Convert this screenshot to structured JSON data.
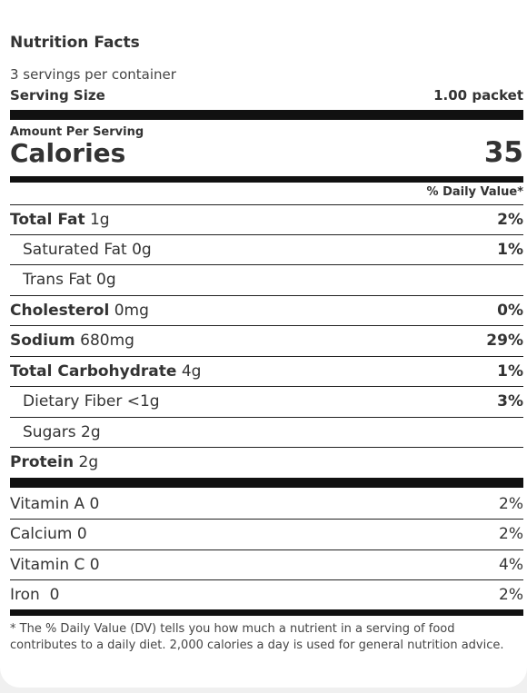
{
  "label": {
    "title": "Nutrition Facts",
    "servings_per_container": "3 servings per container",
    "serving_size_label": "Serving Size",
    "serving_size_value": "1.00 packet",
    "amount_per_serving": "Amount Per Serving",
    "calories_label": "Calories",
    "calories_value": "35",
    "daily_value_header": "% Daily Value*",
    "nutrients": [
      {
        "name": "Total Fat",
        "amount": "1g",
        "dv": "2%"
      },
      {
        "name": "Saturated Fat",
        "amount": "0g",
        "dv": "1%"
      },
      {
        "name": "Trans Fat",
        "amount": "0g",
        "dv": ""
      },
      {
        "name": "Cholesterol",
        "amount": "0mg",
        "dv": "0%"
      },
      {
        "name": "Sodium",
        "amount": "680mg",
        "dv": "29%"
      },
      {
        "name": "Total Carbohydrate",
        "amount": "4g",
        "dv": "1%"
      },
      {
        "name": "Dietary Fiber",
        "amount": "<1g",
        "dv": "3%"
      },
      {
        "name": "Sugars",
        "amount": "2g",
        "dv": ""
      },
      {
        "name": "Protein",
        "amount": "2g",
        "dv": ""
      }
    ],
    "vitamins": [
      {
        "name": "Vitamin A 0",
        "dv": "2%"
      },
      {
        "name": "Calcium 0",
        "dv": "2%"
      },
      {
        "name": "Vitamin C 0",
        "dv": "4%"
      },
      {
        "name": "Iron  0",
        "dv": "2%"
      }
    ],
    "footnote": "* The % Daily Value (DV) tells you how much a nutrient in a serving of food contributes to a daily diet. 2,000 calories a day is used for general nutrition advice."
  }
}
